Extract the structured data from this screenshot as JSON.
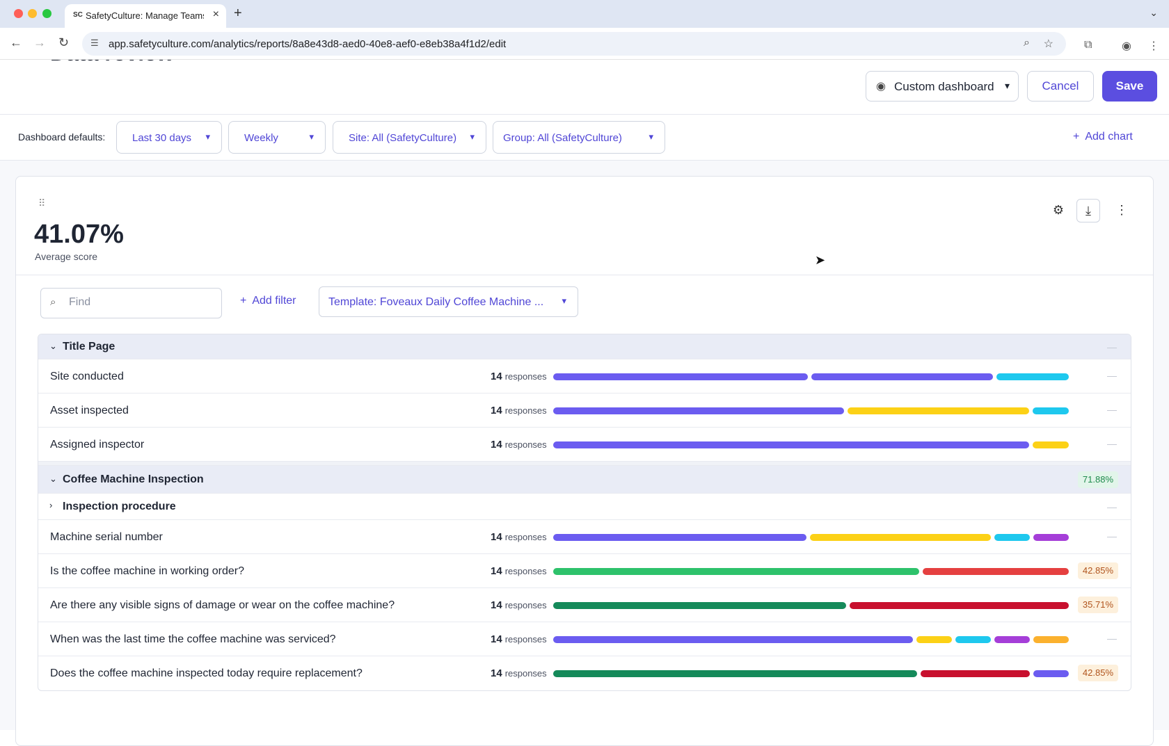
{
  "browser": {
    "tab_title": "SafetyCulture: Manage Teams",
    "favicon": "SC",
    "url": "app.safetyculture.com/analytics/reports/8a8e43d8-aed0-40e8-aef0-e8eb38a4f1d2/edit"
  },
  "header": {
    "title_partial": "Data review",
    "dashboard_label": "Custom dashboard",
    "cancel_label": "Cancel",
    "save_label": "Save",
    "accent_color": "#5b4ee0"
  },
  "defaults": {
    "label": "Dashboard defaults:",
    "date_range": "Last 30 days",
    "interval": "Weekly",
    "site": "Site: All (SafetyCulture)",
    "group": "Group: All (SafetyCulture)",
    "add_chart": "Add chart"
  },
  "card": {
    "score": "41.07%",
    "score_label": "Average score",
    "find_placeholder": "Find",
    "add_filter": "Add filter",
    "template_filter": "Template: Foveaux Daily Coffee Machine ..."
  },
  "table": {
    "resp_word": "responses",
    "sections": [
      {
        "name": "Title Page",
        "rows": [
          {
            "label": "Site conducted",
            "count": "14"
          },
          {
            "label": "Asset inspected",
            "count": "14"
          },
          {
            "label": "Assigned inspector",
            "count": "14"
          }
        ]
      },
      {
        "name": "Coffee Machine Inspection",
        "score": "71.88%",
        "subsection": "Inspection procedure",
        "rows": [
          {
            "label": "Machine serial number",
            "count": "14"
          },
          {
            "label": "Is the coffee machine in working order?",
            "count": "14",
            "score": "42.85%"
          },
          {
            "label": "Are there any visible signs of damage or wear on the coffee machine?",
            "count": "14",
            "score": "35.71%"
          },
          {
            "label": "When was the last time the coffee machine was serviced?",
            "count": "14"
          },
          {
            "label": "Does the coffee machine inspected today require replacement?",
            "count": "14",
            "score": "42.85%"
          }
        ]
      }
    ]
  },
  "colors": {
    "purple": "#6b5cf0",
    "cyan": "#1ec8ee",
    "yellow": "#fcd116",
    "violet": "#a53ed8",
    "orange": "#fbb12e",
    "green": "#2ec26b",
    "dark_green": "#158a5a",
    "red": "#e54040",
    "dark_red": "#c8102e"
  }
}
